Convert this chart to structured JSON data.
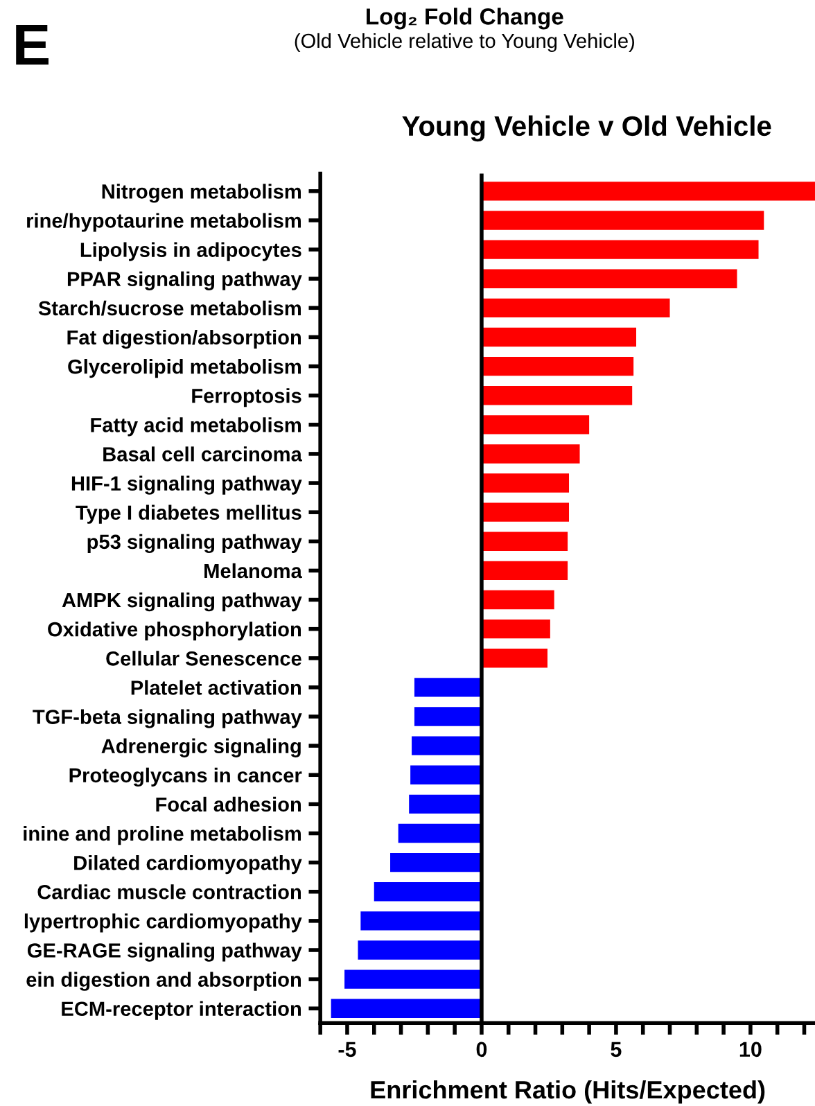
{
  "chart_data": {
    "type": "bar",
    "orientation": "horizontal",
    "title": "Young Vehicle v Old Vehicle",
    "xlabel": "Enrichment Ratio (Hits/Expected)",
    "annotations": [
      "E",
      "Log₂ Fold Change",
      "(Old Vehicle relative to Young Vehicle)"
    ],
    "categories": [
      "Nitrogen metabolism",
      "rine/hypotaurine metabolism",
      "Lipolysis in adipocytes",
      "PPAR signaling pathway",
      "Starch/sucrose metabolism",
      "Fat digestion/absorption",
      "Glycerolipid metabolism",
      "Ferroptosis",
      "Fatty acid metabolism",
      "Basal cell carcinoma",
      "HIF-1 signaling pathway",
      "Type I diabetes mellitus",
      "p53 signaling pathway",
      "Melanoma",
      "AMPK signaling pathway",
      "Oxidative phosphorylation",
      "Cellular Senescence",
      "Platelet activation",
      "TGF-beta signaling pathway",
      "Adrenergic signaling",
      "Proteoglycans in cancer",
      "Focal adhesion",
      "inine and proline metabolism",
      "Dilated cardiomyopathy",
      "Cardiac muscle contraction",
      "lypertrophic cardiomyopathy",
      "GE-RAGE signaling pathway",
      "ein digestion and absorption",
      "ECM-receptor interaction"
    ],
    "values": [
      12.4,
      10.5,
      10.3,
      9.5,
      7.0,
      5.75,
      5.65,
      5.6,
      4.0,
      3.65,
      3.25,
      3.25,
      3.2,
      3.2,
      2.7,
      2.55,
      2.45,
      -2.5,
      -2.5,
      -2.6,
      -2.65,
      -2.7,
      -3.1,
      -3.4,
      -4.0,
      -4.5,
      -4.6,
      -5.1,
      -5.6
    ],
    "colors": [
      "#ff0000",
      "#ff0000",
      "#ff0000",
      "#ff0000",
      "#ff0000",
      "#ff0000",
      "#ff0000",
      "#ff0000",
      "#ff0000",
      "#ff0000",
      "#ff0000",
      "#ff0000",
      "#ff0000",
      "#ff0000",
      "#ff0000",
      "#ff0000",
      "#ff0000",
      "#0000ff",
      "#0000ff",
      "#0000ff",
      "#0000ff",
      "#0000ff",
      "#0000ff",
      "#0000ff",
      "#0000ff",
      "#0000ff",
      "#0000ff",
      "#0000ff",
      "#0000ff"
    ],
    "xlim": [
      -6,
      12.4
    ],
    "xticks": [
      {
        "value": -6,
        "label": null
      },
      -5,
      {
        "value": -4,
        "label": null
      },
      {
        "value": -3,
        "label": null
      },
      {
        "value": -2,
        "label": null
      },
      {
        "value": -1,
        "label": null
      },
      0,
      {
        "value": 1,
        "label": null
      },
      {
        "value": 2,
        "label": null
      },
      {
        "value": 3,
        "label": null
      },
      {
        "value": 4,
        "label": null
      },
      5,
      {
        "value": 6,
        "label": null
      },
      {
        "value": 7,
        "label": null
      },
      {
        "value": 8,
        "label": null
      },
      {
        "value": 9,
        "label": null
      },
      10,
      {
        "value": 11,
        "label": null
      },
      {
        "value": 12,
        "label": null
      }
    ],
    "ref_lines": [
      {
        "axis": "x",
        "value": 0,
        "label": null,
        "color": "#000000"
      }
    ],
    "grid": false,
    "legend": false
  }
}
